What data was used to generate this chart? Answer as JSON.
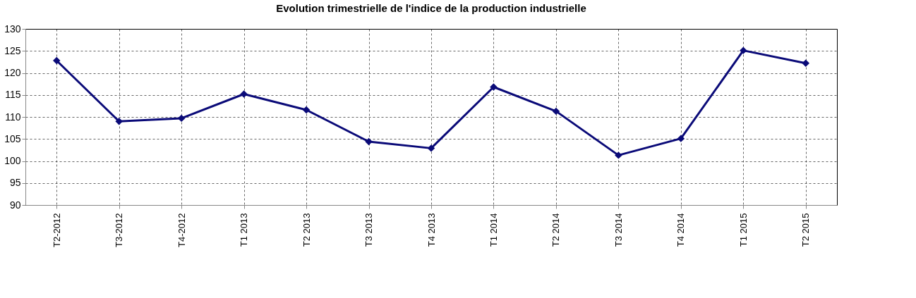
{
  "chart_data": {
    "type": "line",
    "title": "Evolution  trimestrielle de l'indice de la production industrielle",
    "categories": [
      "T2-2012",
      "T3-2012",
      "T4-2012",
      "T1 2013",
      "T2 2013",
      "T3 2013",
      "T4 2013",
      "T1 2014",
      "T2 2014",
      "T3 2014",
      "T4 2014",
      "T1 2015",
      "T2 2015"
    ],
    "series": [
      {
        "color": "#0a0a78",
        "values": [
          122.8,
          109.0,
          109.7,
          115.2,
          111.6,
          104.4,
          102.9,
          116.8,
          111.3,
          101.3,
          105.1,
          125.1,
          122.2
        ]
      }
    ],
    "ylim": [
      90,
      130
    ],
    "yticks": [
      90,
      95,
      100,
      105,
      110,
      115,
      120,
      125,
      130
    ],
    "grid": true,
    "marker": "diamond",
    "line_style": "solid"
  }
}
